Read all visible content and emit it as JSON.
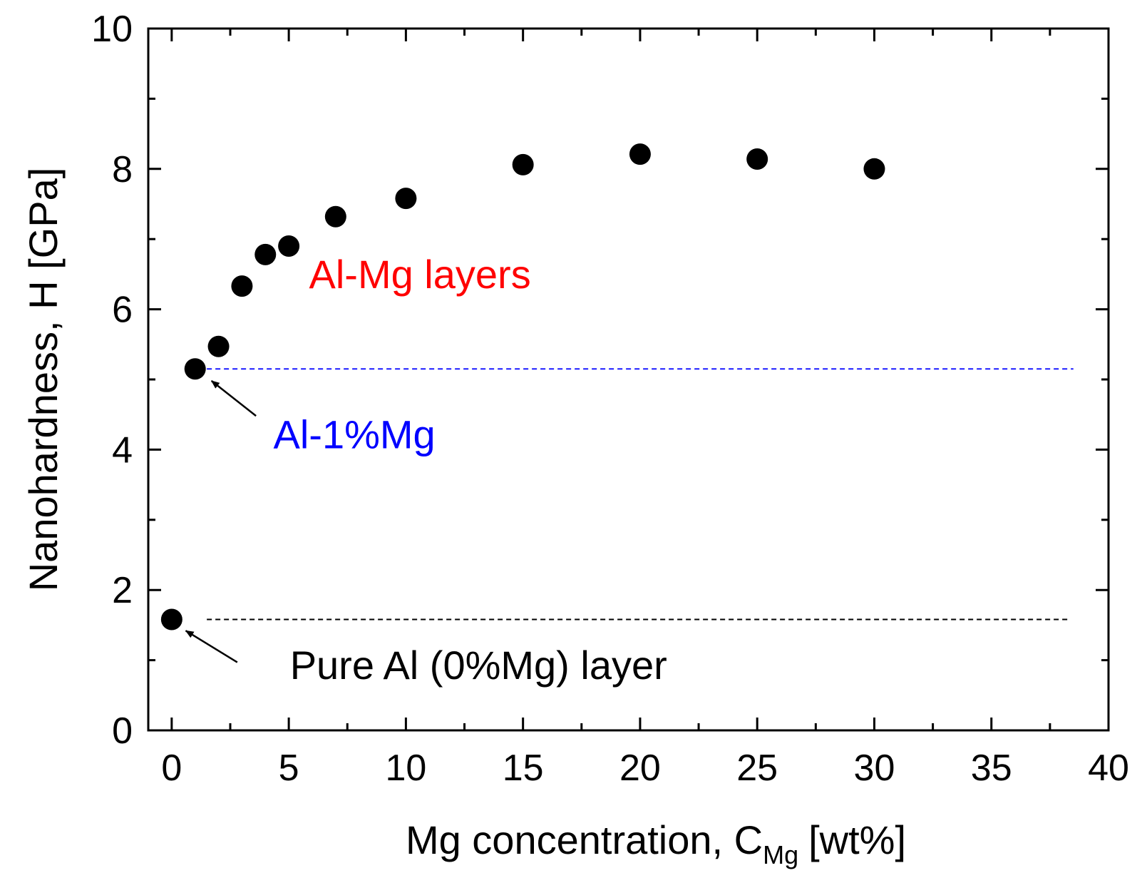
{
  "chart_data": {
    "type": "scatter",
    "xlabel_main": "Mg concentration, C",
    "xlabel_sub": "Mg",
    "xlabel_unit": "[wt%]",
    "ylabel": "Nanohardness, H [GPa]",
    "xlim": [
      -1,
      40
    ],
    "ylim": [
      0,
      10
    ],
    "x_ticks": [
      0,
      5,
      10,
      15,
      20,
      25,
      30,
      35,
      40
    ],
    "x_tick_labels": [
      "0",
      "5",
      "10",
      "15",
      "20",
      "25",
      "30",
      "35",
      "40"
    ],
    "y_ticks": [
      0,
      2,
      4,
      6,
      8,
      10
    ],
    "y_tick_labels": [
      "0",
      "2",
      "4",
      "6",
      "8",
      "10"
    ],
    "series": [
      {
        "name": "Nanohardness",
        "color": "#000000",
        "points": [
          {
            "x": 0,
            "y": 1.58
          },
          {
            "x": 1,
            "y": 5.15
          },
          {
            "x": 2,
            "y": 5.47
          },
          {
            "x": 3,
            "y": 6.33
          },
          {
            "x": 4,
            "y": 6.78
          },
          {
            "x": 5,
            "y": 6.9
          },
          {
            "x": 7,
            "y": 7.32
          },
          {
            "x": 10,
            "y": 7.58
          },
          {
            "x": 15,
            "y": 8.06
          },
          {
            "x": 20,
            "y": 8.21
          },
          {
            "x": 25,
            "y": 8.14
          },
          {
            "x": 30,
            "y": 8.0
          }
        ]
      }
    ],
    "reference_lines": [
      {
        "name": "al-1mg-reference-line",
        "y": 5.15,
        "x_start": 1.5,
        "x_end": 38.5,
        "color": "#1a1aff"
      },
      {
        "name": "pure-al-reference-line",
        "y": 1.58,
        "x_start": 1.5,
        "x_end": 38.3,
        "color": "#000000"
      }
    ],
    "annotations": [
      {
        "name": "al-mg-layers-label",
        "text": "Al-Mg layers",
        "color": "#ff0000",
        "x": 10.6,
        "y": 6.3
      },
      {
        "name": "al-1mg-label",
        "text": "Al-1%Mg",
        "color": "#0000ff",
        "x": 7.8,
        "y": 4.02
      },
      {
        "name": "pure-al-label",
        "text": "Pure Al (0%Mg) layer",
        "color": "#000000",
        "x": 13.1,
        "y": 0.73
      }
    ],
    "arrows": [
      {
        "name": "al-1mg-arrow",
        "from": {
          "x": 3.6,
          "y": 4.48
        },
        "to": {
          "x": 1.7,
          "y": 4.98
        }
      },
      {
        "name": "pure-al-arrow",
        "from": {
          "x": 2.8,
          "y": 0.97
        },
        "to": {
          "x": 0.6,
          "y": 1.42
        }
      }
    ]
  }
}
